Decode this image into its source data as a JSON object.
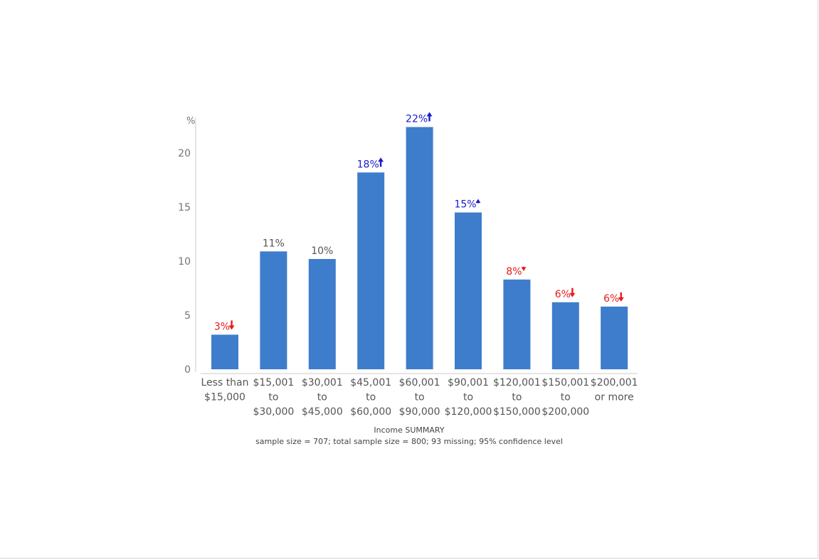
{
  "chart_data": {
    "type": "bar",
    "y_unit_label": "%",
    "categories": [
      [
        "Less than",
        "$15,000"
      ],
      [
        "$15,001",
        "to",
        "$30,000"
      ],
      [
        "$30,001",
        "to",
        "$45,000"
      ],
      [
        "$45,001",
        "to",
        "$60,000"
      ],
      [
        "$60,001",
        "to",
        "$90,000"
      ],
      [
        "$90,001",
        "to",
        "$120,000"
      ],
      [
        "$120,001",
        "to",
        "$150,000"
      ],
      [
        "$150,001",
        "to",
        "$200,000"
      ],
      [
        "$200,001",
        "or more"
      ]
    ],
    "values": [
      3.2,
      10.9,
      10.2,
      18.2,
      22.4,
      14.5,
      8.3,
      6.2,
      5.8
    ],
    "data_labels": [
      "3%",
      "11%",
      "10%",
      "18%",
      "22%",
      "15%",
      "8%",
      "6%",
      "6%"
    ],
    "significance": [
      "down",
      "none",
      "none",
      "up",
      "up",
      "up-small",
      "down-small",
      "down",
      "down"
    ],
    "ylim": [
      0,
      23
    ],
    "yticks": [
      0,
      5,
      10,
      15,
      20
    ],
    "grid": false,
    "legend": "none",
    "title": "Income SUMMARY",
    "note": "sample size = 707; total sample size = 800; 93 missing; 95% confidence level",
    "colors": {
      "bar": "#3e7dcc",
      "up": "#1a1acc",
      "down": "#e8191b",
      "neutral": "#555555",
      "axis": "#cccccc"
    }
  }
}
